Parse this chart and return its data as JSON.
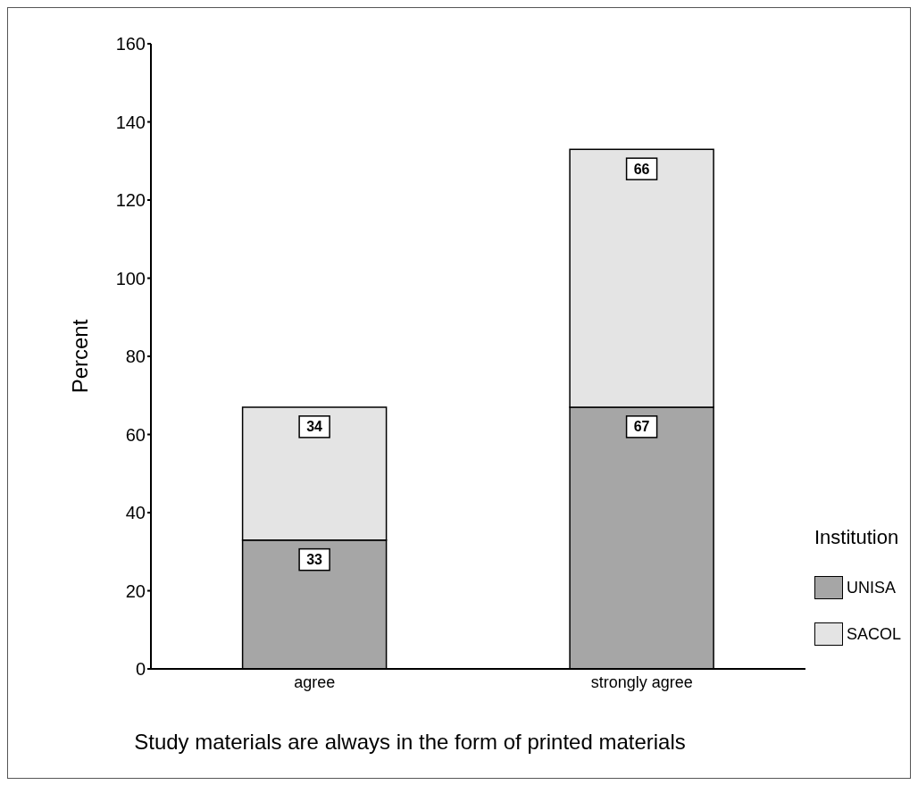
{
  "chart_data": {
    "type": "bar",
    "stacked": true,
    "xlabel": "Study materials are always in the form of printed materials",
    "ylabel": "Percent",
    "legend_title": "Institution",
    "legend": "bottom right",
    "categories": [
      "agree",
      "strongly agree"
    ],
    "series": [
      {
        "name": "UNISA",
        "color": "#a6a6a6",
        "values": [
          33,
          67
        ]
      },
      {
        "name": "SACOL",
        "color": "#e4e4e4",
        "values": [
          34,
          66
        ]
      }
    ],
    "ylim": [
      0,
      160
    ],
    "yticks": [
      0,
      20,
      40,
      60,
      80,
      100,
      120,
      140,
      160
    ],
    "grid": false,
    "data_labels": true
  }
}
